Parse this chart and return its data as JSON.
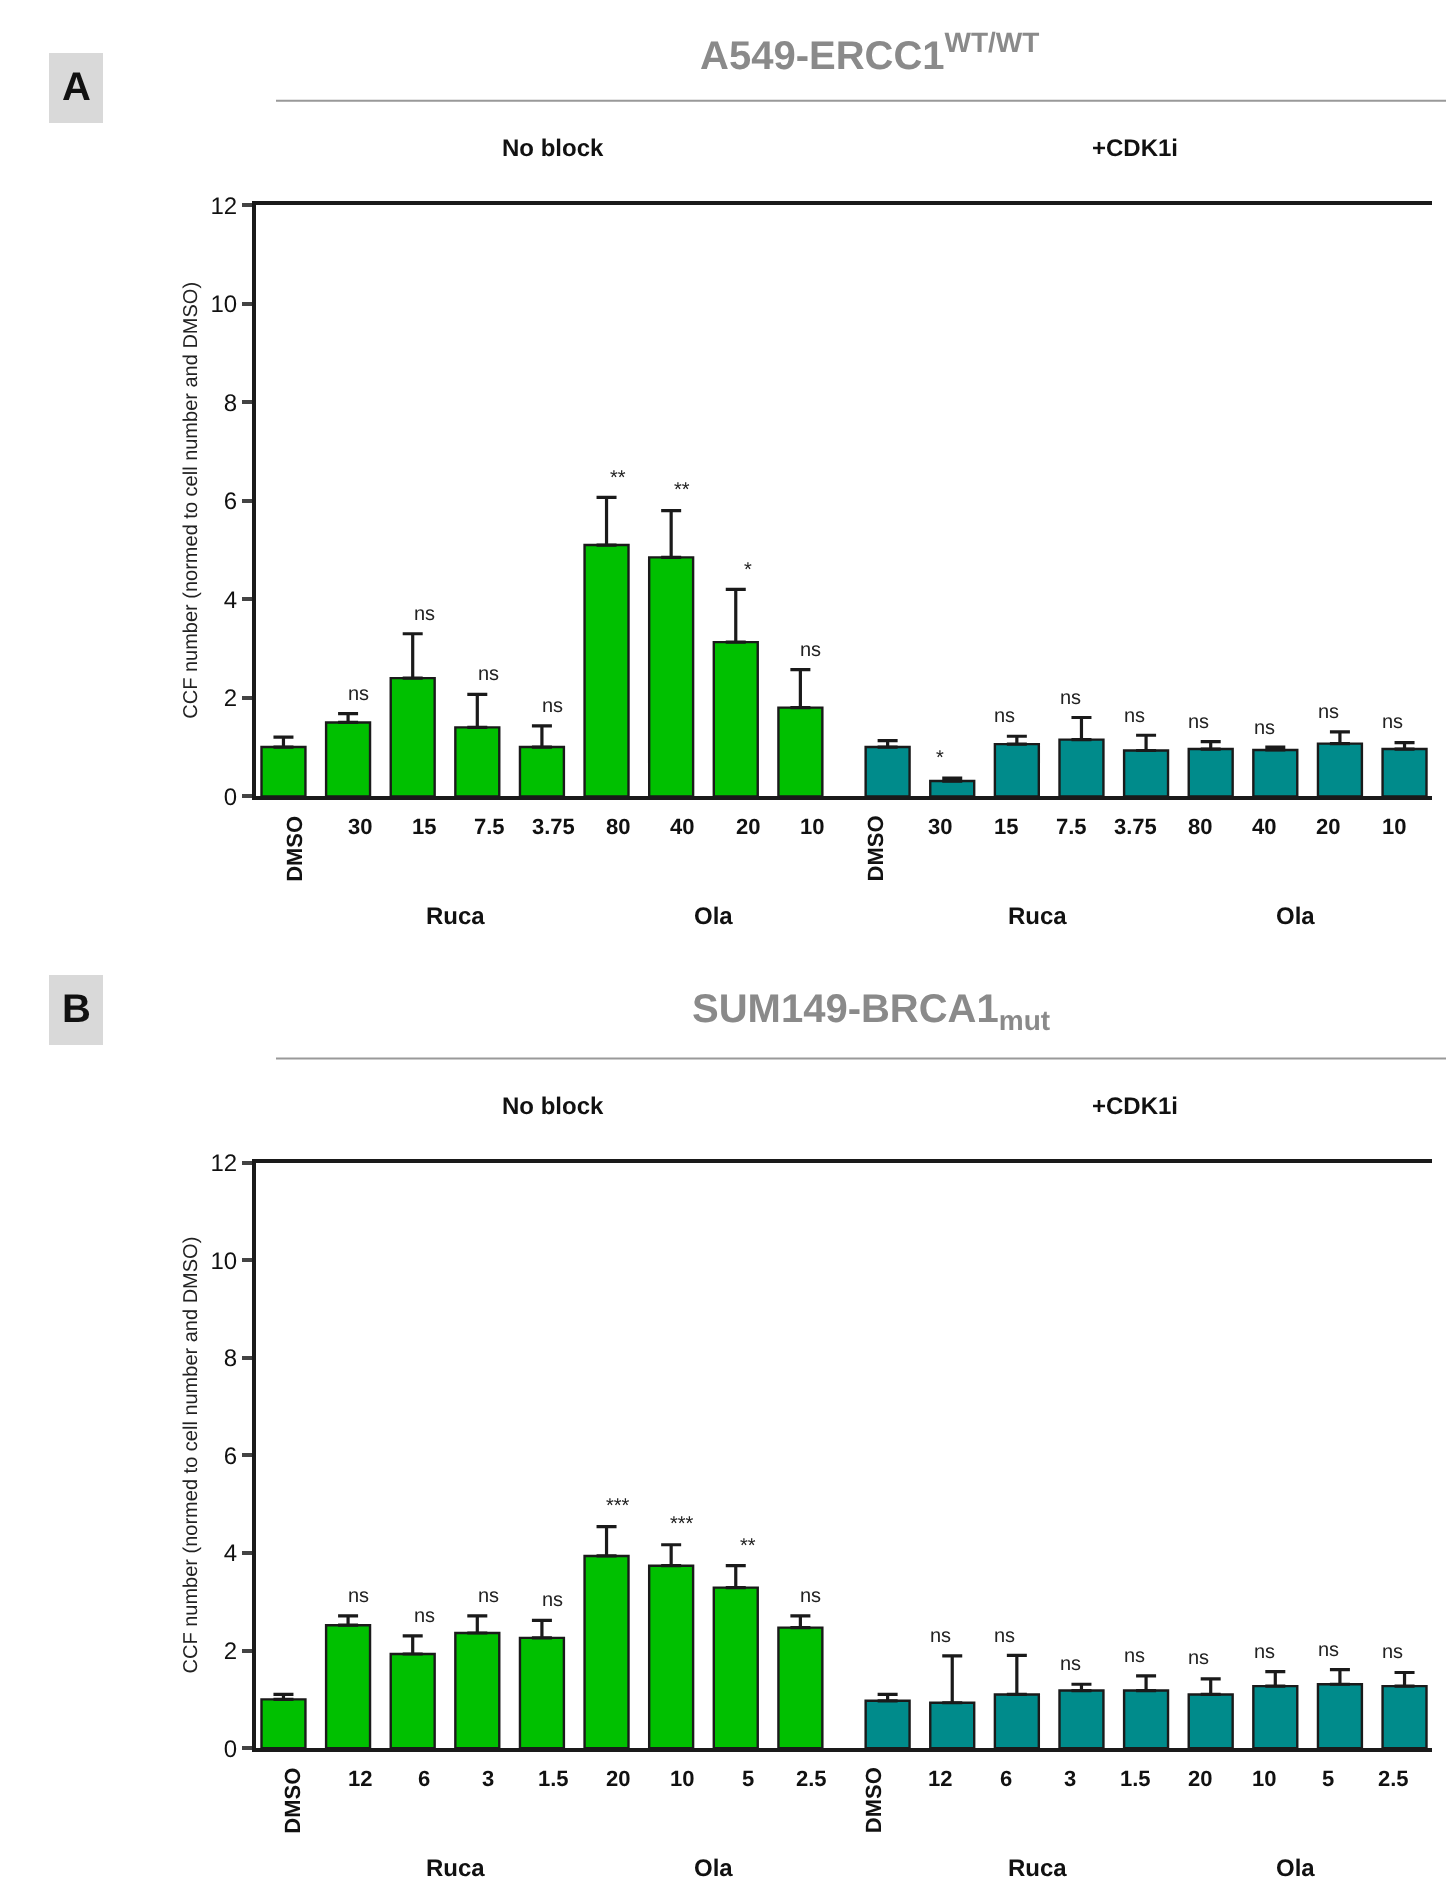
{
  "chart_data": [
    {
      "type": "bar",
      "title": "A549-ERCC1$^{WT/WT}$",
      "ylabel": "CCF number (normed to cell number and DMSO)",
      "categories": [
        "DMSO",
        "30",
        "15",
        "7.5",
        "3.75",
        "80",
        "40",
        "20",
        "10",
        "DMSO",
        "30",
        "15",
        "7.5",
        "3.75",
        "80",
        "40",
        "20",
        "10"
      ],
      "series": [
        {
          "color": "#00c000",
          "values": [
            1.0,
            1.5,
            2.4,
            1.4,
            1.0,
            5.1,
            4.85,
            3.13,
            1.8,
            null,
            null,
            null,
            null,
            null,
            null,
            null,
            null,
            null
          ],
          "errors": [
            [
              1.0,
              1.2
            ],
            [
              1.5,
              1.68
            ],
            [
              2.4,
              3.3
            ],
            [
              1.4,
              2.07
            ],
            [
              1.0,
              1.43
            ],
            [
              5.1,
              6.07
            ],
            [
              4.85,
              5.8
            ],
            [
              3.13,
              4.2
            ],
            [
              1.8,
              2.57
            ],
            null,
            null,
            null,
            null,
            null,
            null,
            null,
            null,
            null
          ],
          "value_labels": [
            null,
            "ns",
            "ns",
            "ns",
            "ns",
            "**",
            "**",
            "*",
            "ns",
            null,
            null,
            null,
            null,
            null,
            null,
            null,
            null,
            null
          ]
        },
        {
          "color": "#008b8b",
          "values": [
            null,
            null,
            null,
            null,
            null,
            null,
            null,
            null,
            null,
            1.0,
            0.31,
            1.06,
            1.15,
            0.93,
            0.96,
            0.94,
            1.07,
            0.96
          ],
          "errors": [
            null,
            null,
            null,
            null,
            null,
            null,
            null,
            null,
            null,
            [
              1.0,
              1.13
            ],
            [
              0.31,
              0.37
            ],
            [
              1.06,
              1.22
            ],
            [
              1.15,
              1.6
            ],
            [
              0.93,
              1.24
            ],
            [
              0.96,
              1.11
            ],
            [
              0.94,
              1.0
            ],
            [
              1.07,
              1.31
            ],
            [
              0.96,
              1.09
            ]
          ],
          "value_labels": [
            null,
            null,
            null,
            null,
            null,
            null,
            null,
            null,
            null,
            null,
            "*",
            "ns",
            "ns",
            "ns",
            "ns",
            "ns",
            "ns",
            "ns"
          ]
        }
      ],
      "ylim": [
        0,
        12
      ],
      "yticks": [
        0,
        2,
        4,
        6,
        8,
        10,
        12
      ],
      "annotations": [
        "A",
        "No block",
        "+CDK1i",
        "Ruca",
        "Ola",
        "Ruca",
        "Ola"
      ]
    },
    {
      "type": "bar",
      "title": "SUM149-BRCA1$_{mut}$",
      "ylabel": "CCF number (normed to cell number and DMSO)",
      "categories": [
        "DMSO",
        "12",
        "6",
        "3",
        "1.5",
        "20",
        "10",
        "5",
        "2.5",
        "DMSO",
        "12",
        "6",
        "3",
        "1.5",
        "20",
        "10",
        "5",
        "2.5"
      ],
      "series": [
        {
          "color": "#00c000",
          "values": [
            1.0,
            2.52,
            1.93,
            2.36,
            2.26,
            3.94,
            3.74,
            3.29,
            2.47,
            null,
            null,
            null,
            null,
            null,
            null,
            null,
            null,
            null
          ],
          "errors": [
            [
              1.0,
              1.1
            ],
            [
              2.52,
              2.71
            ],
            [
              1.93,
              2.3
            ],
            [
              2.36,
              2.71
            ],
            [
              2.26,
              2.62
            ],
            [
              3.94,
              4.54
            ],
            [
              3.74,
              4.17
            ],
            [
              3.29,
              3.74
            ],
            [
              2.47,
              2.71
            ],
            null,
            null,
            null,
            null,
            null,
            null,
            null,
            null,
            null
          ],
          "value_labels": [
            null,
            "ns",
            "ns",
            "ns",
            "ns",
            "***",
            "***",
            "**",
            "ns",
            null,
            null,
            null,
            null,
            null,
            null,
            null,
            null,
            null
          ]
        },
        {
          "color": "#008b8b",
          "values": [
            null,
            null,
            null,
            null,
            null,
            null,
            null,
            null,
            null,
            0.97,
            0.93,
            1.1,
            1.18,
            1.18,
            1.1,
            1.27,
            1.31,
            1.27
          ],
          "errors": [
            null,
            null,
            null,
            null,
            null,
            null,
            null,
            null,
            null,
            [
              0.97,
              1.1
            ],
            [
              0.93,
              1.89
            ],
            [
              1.1,
              1.9
            ],
            [
              1.18,
              1.31
            ],
            [
              1.18,
              1.48
            ],
            [
              1.1,
              1.42
            ],
            [
              1.27,
              1.57
            ],
            [
              1.31,
              1.61
            ],
            [
              1.27,
              1.55
            ]
          ],
          "value_labels": [
            null,
            null,
            null,
            null,
            null,
            null,
            null,
            null,
            null,
            null,
            "ns",
            "ns",
            "ns",
            "ns",
            "ns",
            "ns",
            "ns",
            "ns"
          ]
        }
      ],
      "ylim": [
        0,
        12
      ],
      "yticks": [
        0,
        2,
        4,
        6,
        8,
        10,
        12
      ],
      "annotations": [
        "B",
        "No block",
        "+CDK1i",
        "Ruca",
        "Ola",
        "Ruca",
        "Ola"
      ]
    }
  ]
}
